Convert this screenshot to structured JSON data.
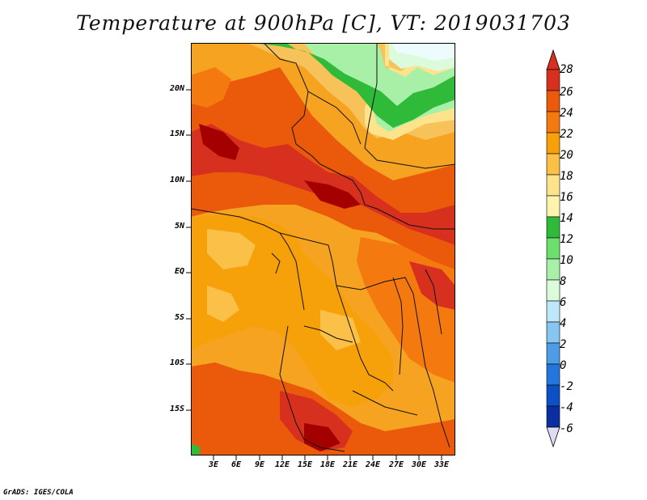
{
  "title": "Temperature at 900hPa [C], VT: 2019031703",
  "credit": "GrADS: IGES/COLA",
  "latitude_labels": [
    "20N",
    "15N",
    "10N",
    "5N",
    "EQ",
    "5S",
    "10S",
    "15S"
  ],
  "longitude_labels": [
    "3E",
    "6E",
    "9E",
    "12E",
    "15E",
    "18E",
    "21E",
    "24E",
    "27E",
    "30E",
    "33E"
  ],
  "colorbar": {
    "levels": [
      "28",
      "26",
      "24",
      "22",
      "20",
      "18",
      "16",
      "14",
      "12",
      "10",
      "8",
      "6",
      "4",
      "2",
      "0",
      "-2",
      "-4",
      "-6"
    ],
    "colors": [
      "#a50000",
      "#d7301f",
      "#ea5a0a",
      "#f47a10",
      "#f7a10a",
      "#fac048",
      "#fde48c",
      "#fdf4b0",
      "#2fba3a",
      "#6ede6e",
      "#a8f0a8",
      "#dcfadc",
      "#bfe7fa",
      "#86c6f0",
      "#4c9de6",
      "#2475dc",
      "#0d4fc4",
      "#0a2fa0",
      "#081a6a"
    ],
    "end_colors": {
      "top": "#d7301f",
      "bottom": "#dcdcf4"
    }
  }
}
